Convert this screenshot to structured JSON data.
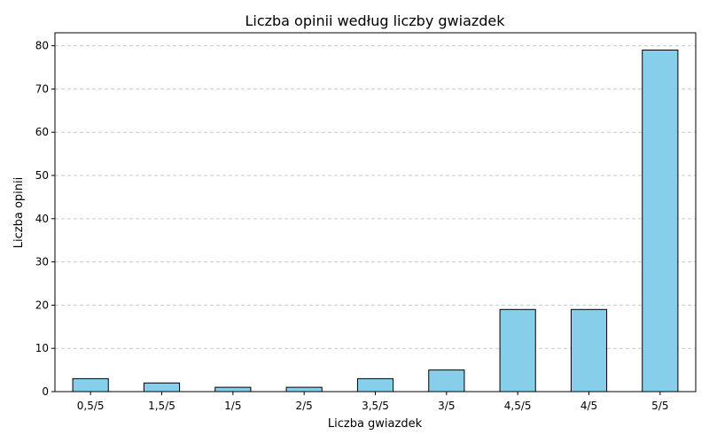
{
  "chart_data": {
    "type": "bar",
    "title": "Liczba opinii według liczby gwiazdek",
    "xlabel": "Liczba gwiazdek",
    "ylabel": "Liczba opinii",
    "categories": [
      "0,5/5",
      "1,5/5",
      "1/5",
      "2/5",
      "3,5/5",
      "3/5",
      "4,5/5",
      "4/5",
      "5/5"
    ],
    "values": [
      3,
      2,
      1,
      1,
      3,
      5,
      19,
      19,
      79
    ],
    "ylim": [
      0,
      83
    ],
    "yticks": [
      "0",
      "10",
      "20",
      "30",
      "40",
      "50",
      "60",
      "70",
      "80"
    ],
    "grid": "y-dashed",
    "bar_color": "#87CEEB",
    "bar_edge_color": "#000000",
    "grid_color": "#c8c8c8"
  }
}
